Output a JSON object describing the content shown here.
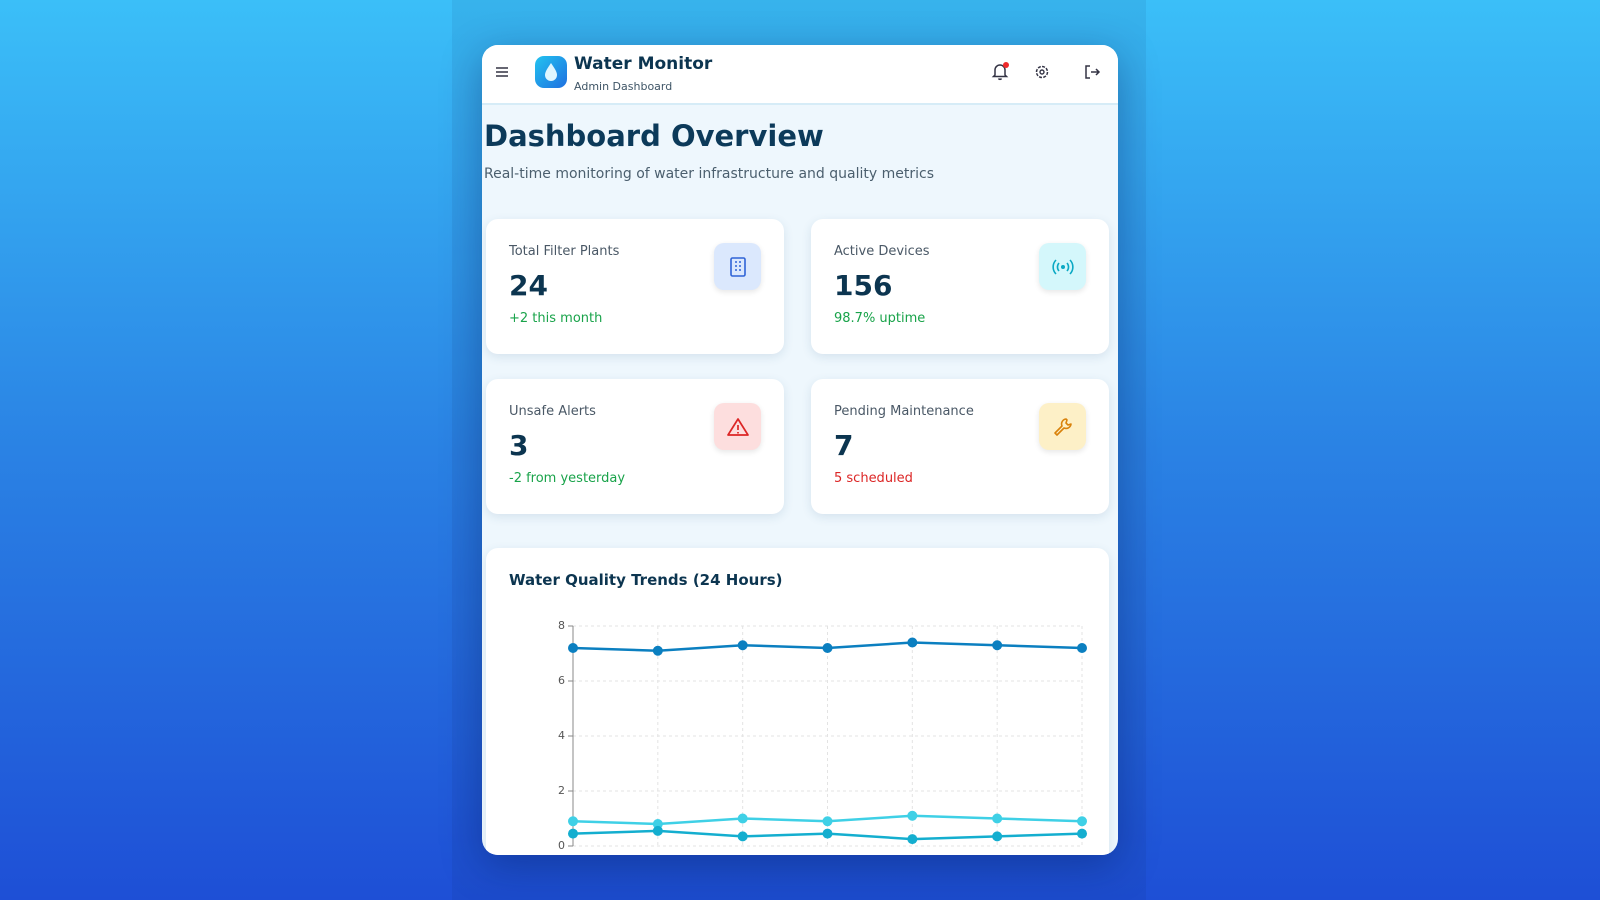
{
  "header": {
    "title": "Water Monitor",
    "subtitle": "Admin Dashboard"
  },
  "page": {
    "title": "Dashboard Overview",
    "subtitle": "Real-time monitoring of water infrastructure and quality metrics"
  },
  "stats": [
    {
      "label": "Total Filter Plants",
      "value": 24,
      "note": "+2 this month"
    },
    {
      "label": "Active Devices",
      "value": 156,
      "note": "98.7% uptime"
    },
    {
      "label": "Unsafe Alerts",
      "value": 3,
      "note": "-2 from yesterday"
    },
    {
      "label": "Pending Maintenance",
      "value": 7,
      "note": "5 scheduled"
    }
  ],
  "chart_data": {
    "type": "line",
    "title": "Water Quality Trends (24 Hours)",
    "categories": [
      null,
      null,
      null,
      null,
      null,
      null,
      null
    ],
    "series": [
      {
        "color": "#0b7fc0",
        "values": [
          7.2,
          7.1,
          7.3,
          7.2,
          7.4,
          7.3,
          7.2
        ]
      },
      {
        "color": "#3fd0e6",
        "values": [
          0.9,
          0.8,
          1.0,
          0.9,
          1.1,
          1.0,
          0.9
        ]
      },
      {
        "color": "#14aecf",
        "values": [
          0.45,
          0.55,
          0.35,
          0.45,
          0.25,
          0.35,
          0.45
        ]
      }
    ],
    "ylim": [
      0,
      8
    ],
    "yticks": [
      0,
      2,
      4,
      6,
      8
    ],
    "grid": true
  }
}
